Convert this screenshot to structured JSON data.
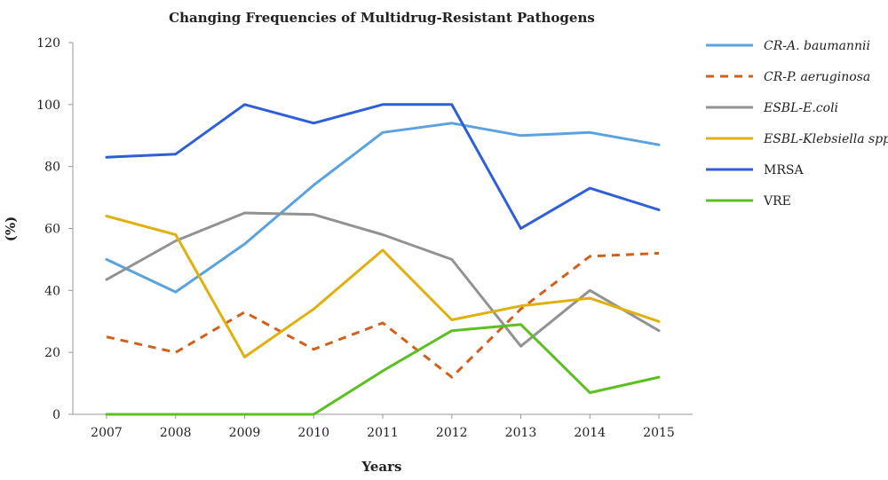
{
  "chart_data": {
    "type": "line",
    "title": "Changing Frequencies of Multidrug-Resistant Pathogens",
    "xlabel": "Years",
    "ylabel": "(%)",
    "categories": [
      "2007",
      "2008",
      "2009",
      "2010",
      "2011",
      "2012",
      "2013",
      "2014",
      "2015"
    ],
    "ylim": [
      0,
      120
    ],
    "yticks": [
      0,
      20,
      40,
      60,
      80,
      100,
      120
    ],
    "grid": false,
    "legend_position": "right",
    "series": [
      {
        "name": "CR-A. baumannii",
        "italic": true,
        "color": "#5aa2e0",
        "dashed": false,
        "values": [
          50,
          39.5,
          55,
          74,
          91,
          94,
          90,
          91,
          87
        ]
      },
      {
        "name": "CR-P. aeruginosa",
        "italic": true,
        "color": "#d2601a",
        "dashed": true,
        "values": [
          25,
          20,
          33,
          21,
          29.5,
          12,
          34,
          51,
          52
        ]
      },
      {
        "name": "ESBL-E.coli",
        "italic": true,
        "color": "#929292",
        "dashed": false,
        "values": [
          43.5,
          56,
          65,
          64.5,
          58,
          50,
          22,
          40,
          27
        ]
      },
      {
        "name": "ESBL-Klebsiella spp.",
        "italic": true,
        "color": "#e0b00c",
        "dashed": false,
        "values": [
          64,
          58,
          18.5,
          34,
          53,
          30.5,
          35,
          37.5,
          30
        ]
      },
      {
        "name": "MRSA",
        "italic": false,
        "color": "#2e5fd8",
        "dashed": false,
        "values": [
          83,
          84,
          100,
          94,
          100,
          100,
          60,
          73,
          66
        ]
      },
      {
        "name": "VRE",
        "italic": false,
        "color": "#5cc021",
        "dashed": false,
        "values": [
          0,
          0,
          0,
          0,
          14,
          27,
          29,
          7,
          12
        ]
      }
    ]
  }
}
